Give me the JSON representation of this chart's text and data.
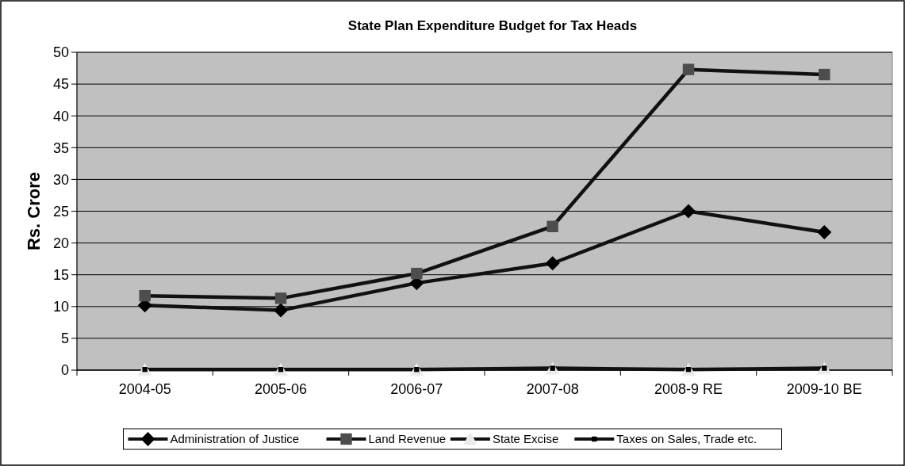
{
  "chart_data": {
    "type": "line",
    "title": "State Plan Expenditure Budget for Tax Heads",
    "ylabel": "Rs. Crore",
    "categories": [
      "2004-05",
      "2005-06",
      "2006-07",
      "2007-08",
      "2008-9 RE",
      "2009-10 BE"
    ],
    "series": [
      {
        "name": "Administration of Justice",
        "color": "#000000",
        "marker": "diamond",
        "values": [
          10.2,
          9.4,
          13.7,
          16.8,
          25.0,
          21.7
        ]
      },
      {
        "name": "Land Revenue",
        "color": "#4d4d4d",
        "marker": "square",
        "values": [
          11.7,
          11.3,
          15.2,
          22.6,
          47.3,
          46.5
        ]
      },
      {
        "name": "State Excise",
        "type": "scatter",
        "color": "#ebebeb",
        "marker": "triangle",
        "values": [
          0,
          0,
          0,
          0.2,
          0,
          0.2
        ]
      },
      {
        "name": "Taxes on Sales, Trade etc.",
        "color": "#000000",
        "marker": "square",
        "values": [
          0.1,
          0.1,
          0.1,
          0.3,
          0.1,
          0.3
        ]
      }
    ],
    "ylim": [
      0,
      50
    ],
    "yticks": [
      0,
      5,
      10,
      15,
      20,
      25,
      30,
      35,
      40,
      45,
      50
    ],
    "grid": "y",
    "legend": "bottom"
  }
}
